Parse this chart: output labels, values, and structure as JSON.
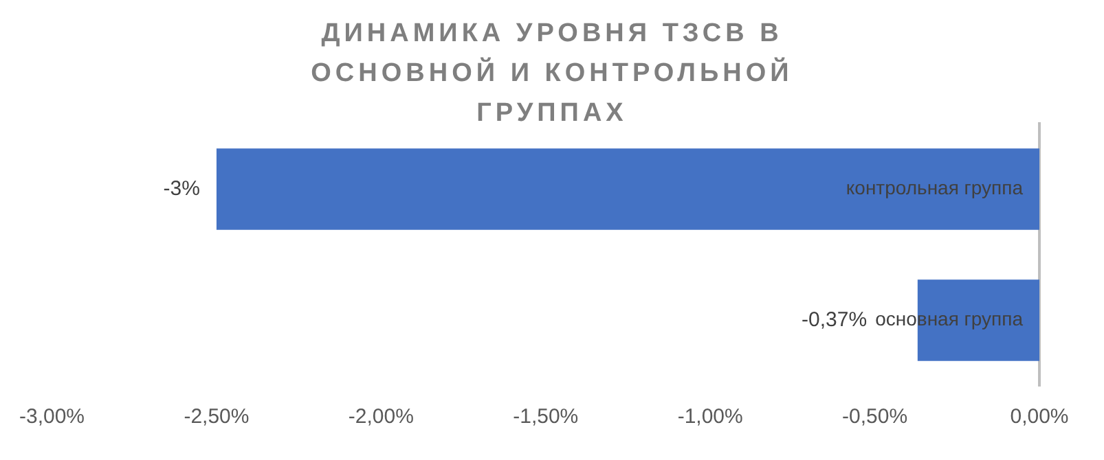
{
  "chart_data": {
    "type": "bar",
    "orientation": "horizontal",
    "title": "ДИНАМИКА  УРОВНЯ ТЗСВ В ОСНОВНОЙ И КОНТРОЛЬНОЙ ГРУППАХ",
    "categories": [
      "контрольная группа",
      "основная группа"
    ],
    "values": [
      -2.5,
      -0.37
    ],
    "color": "#4472c4",
    "value_labels": [
      "-3%",
      "-0,37%"
    ],
    "xlim": [
      -3,
      0
    ],
    "xticks": [
      {
        "value": -3,
        "label": "-3,00%"
      },
      {
        "value": -2.5,
        "label": "-2,50%"
      },
      {
        "value": -2,
        "label": "-2,00%"
      },
      {
        "value": -1.5,
        "label": "-1,50%"
      },
      {
        "value": -1,
        "label": "-1,00%"
      },
      {
        "value": -0.5,
        "label": "-0,50%"
      },
      {
        "value": 0,
        "label": "0,00%"
      }
    ],
    "grid": false,
    "legend": false
  }
}
